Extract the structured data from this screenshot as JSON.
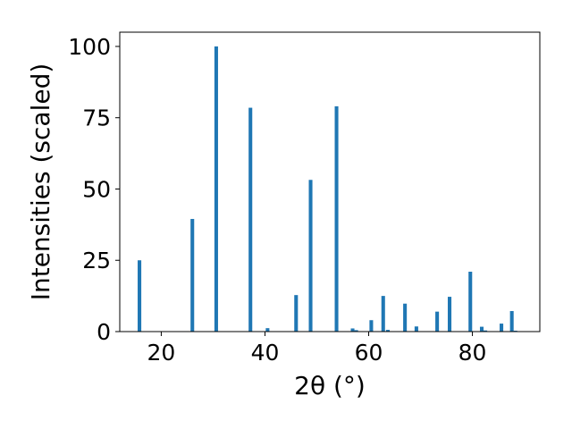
{
  "chart_data": {
    "type": "bar",
    "title": "",
    "xlabel": "2θ (°)",
    "ylabel": "Intensities (scaled)",
    "xlim": [
      12,
      93
    ],
    "ylim": [
      0,
      105
    ],
    "x_ticks": [
      20,
      40,
      60,
      80
    ],
    "y_ticks": [
      0,
      25,
      50,
      75,
      100
    ],
    "grid": false,
    "legend": "none",
    "bar_width_deg": 0.7,
    "bar_color": "#1f77b4",
    "points": [
      {
        "x": 15.8,
        "y": 25.0
      },
      {
        "x": 26.0,
        "y": 39.5
      },
      {
        "x": 30.6,
        "y": 100.0
      },
      {
        "x": 37.2,
        "y": 78.5
      },
      {
        "x": 40.5,
        "y": 1.2
      },
      {
        "x": 46.0,
        "y": 12.8
      },
      {
        "x": 48.8,
        "y": 53.2
      },
      {
        "x": 53.8,
        "y": 79.0
      },
      {
        "x": 56.9,
        "y": 1.1
      },
      {
        "x": 57.6,
        "y": 0.5
      },
      {
        "x": 60.5,
        "y": 4.0
      },
      {
        "x": 62.8,
        "y": 12.5
      },
      {
        "x": 63.7,
        "y": 0.6
      },
      {
        "x": 67.0,
        "y": 9.8
      },
      {
        "x": 69.2,
        "y": 1.8
      },
      {
        "x": 73.2,
        "y": 7.0
      },
      {
        "x": 75.6,
        "y": 12.2
      },
      {
        "x": 79.6,
        "y": 21.0
      },
      {
        "x": 81.8,
        "y": 1.7
      },
      {
        "x": 82.5,
        "y": 0.4
      },
      {
        "x": 85.6,
        "y": 2.8
      },
      {
        "x": 87.6,
        "y": 7.2
      },
      {
        "x": 88.3,
        "y": 0.3
      }
    ]
  }
}
